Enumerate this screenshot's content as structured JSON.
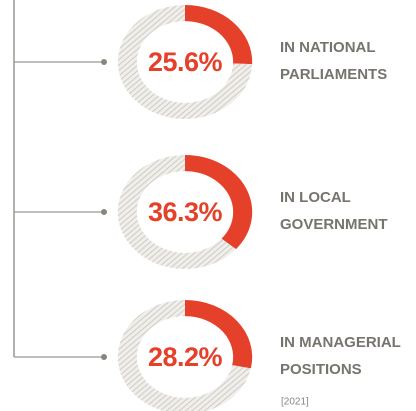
{
  "chart_data": [
    {
      "type": "donut",
      "label_lines": [
        "IN NATIONAL",
        "PARLIAMENTS"
      ],
      "values": [
        25.6,
        74.4
      ],
      "value_labels": [
        "25.6%"
      ],
      "colors": [
        "#e5402a",
        "#d9d6d0"
      ]
    },
    {
      "type": "donut",
      "label_lines": [
        "IN LOCAL",
        "GOVERNMENT"
      ],
      "values": [
        36.3,
        63.7
      ],
      "value_labels": [
        "36.3%"
      ],
      "colors": [
        "#e5402a",
        "#d9d6d0"
      ]
    },
    {
      "type": "donut",
      "label_lines": [
        "IN MANAGERIAL",
        "POSITIONS"
      ],
      "values": [
        28.2,
        71.8
      ],
      "value_labels": [
        "28.2%"
      ],
      "colors": [
        "#e5402a",
        "#d9d6d0"
      ],
      "note": "[2021]"
    }
  ]
}
